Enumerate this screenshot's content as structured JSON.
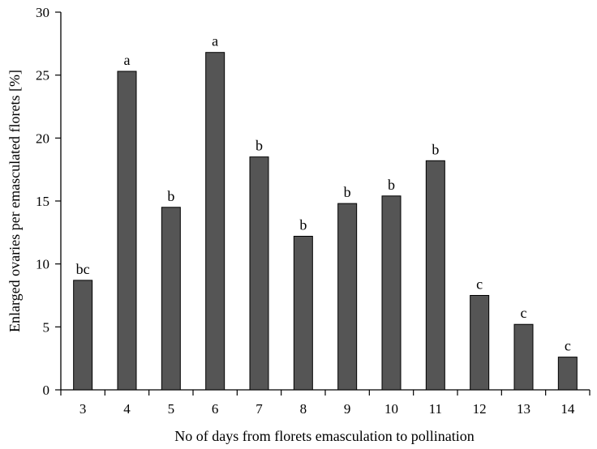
{
  "chart_data": {
    "type": "bar",
    "title": "",
    "xlabel": "No of days from florets emasculation to pollination",
    "ylabel": "Enlarged ovaries per emasculated florets [%]",
    "ylim": [
      0,
      30
    ],
    "yticks": [
      0,
      5,
      10,
      15,
      20,
      25,
      30
    ],
    "categories": [
      "3",
      "4",
      "5",
      "6",
      "7",
      "8",
      "9",
      "10",
      "11",
      "12",
      "13",
      "14"
    ],
    "values": [
      8.7,
      25.3,
      14.5,
      26.8,
      18.5,
      12.2,
      14.8,
      15.4,
      18.2,
      7.5,
      5.2,
      2.6
    ],
    "significance_letters": [
      "bc",
      "a",
      "b",
      "a",
      "b",
      "b",
      "b",
      "b",
      "b",
      "c",
      "c",
      "c"
    ],
    "grid": false,
    "legend": "none",
    "bar_color": "#555555"
  }
}
